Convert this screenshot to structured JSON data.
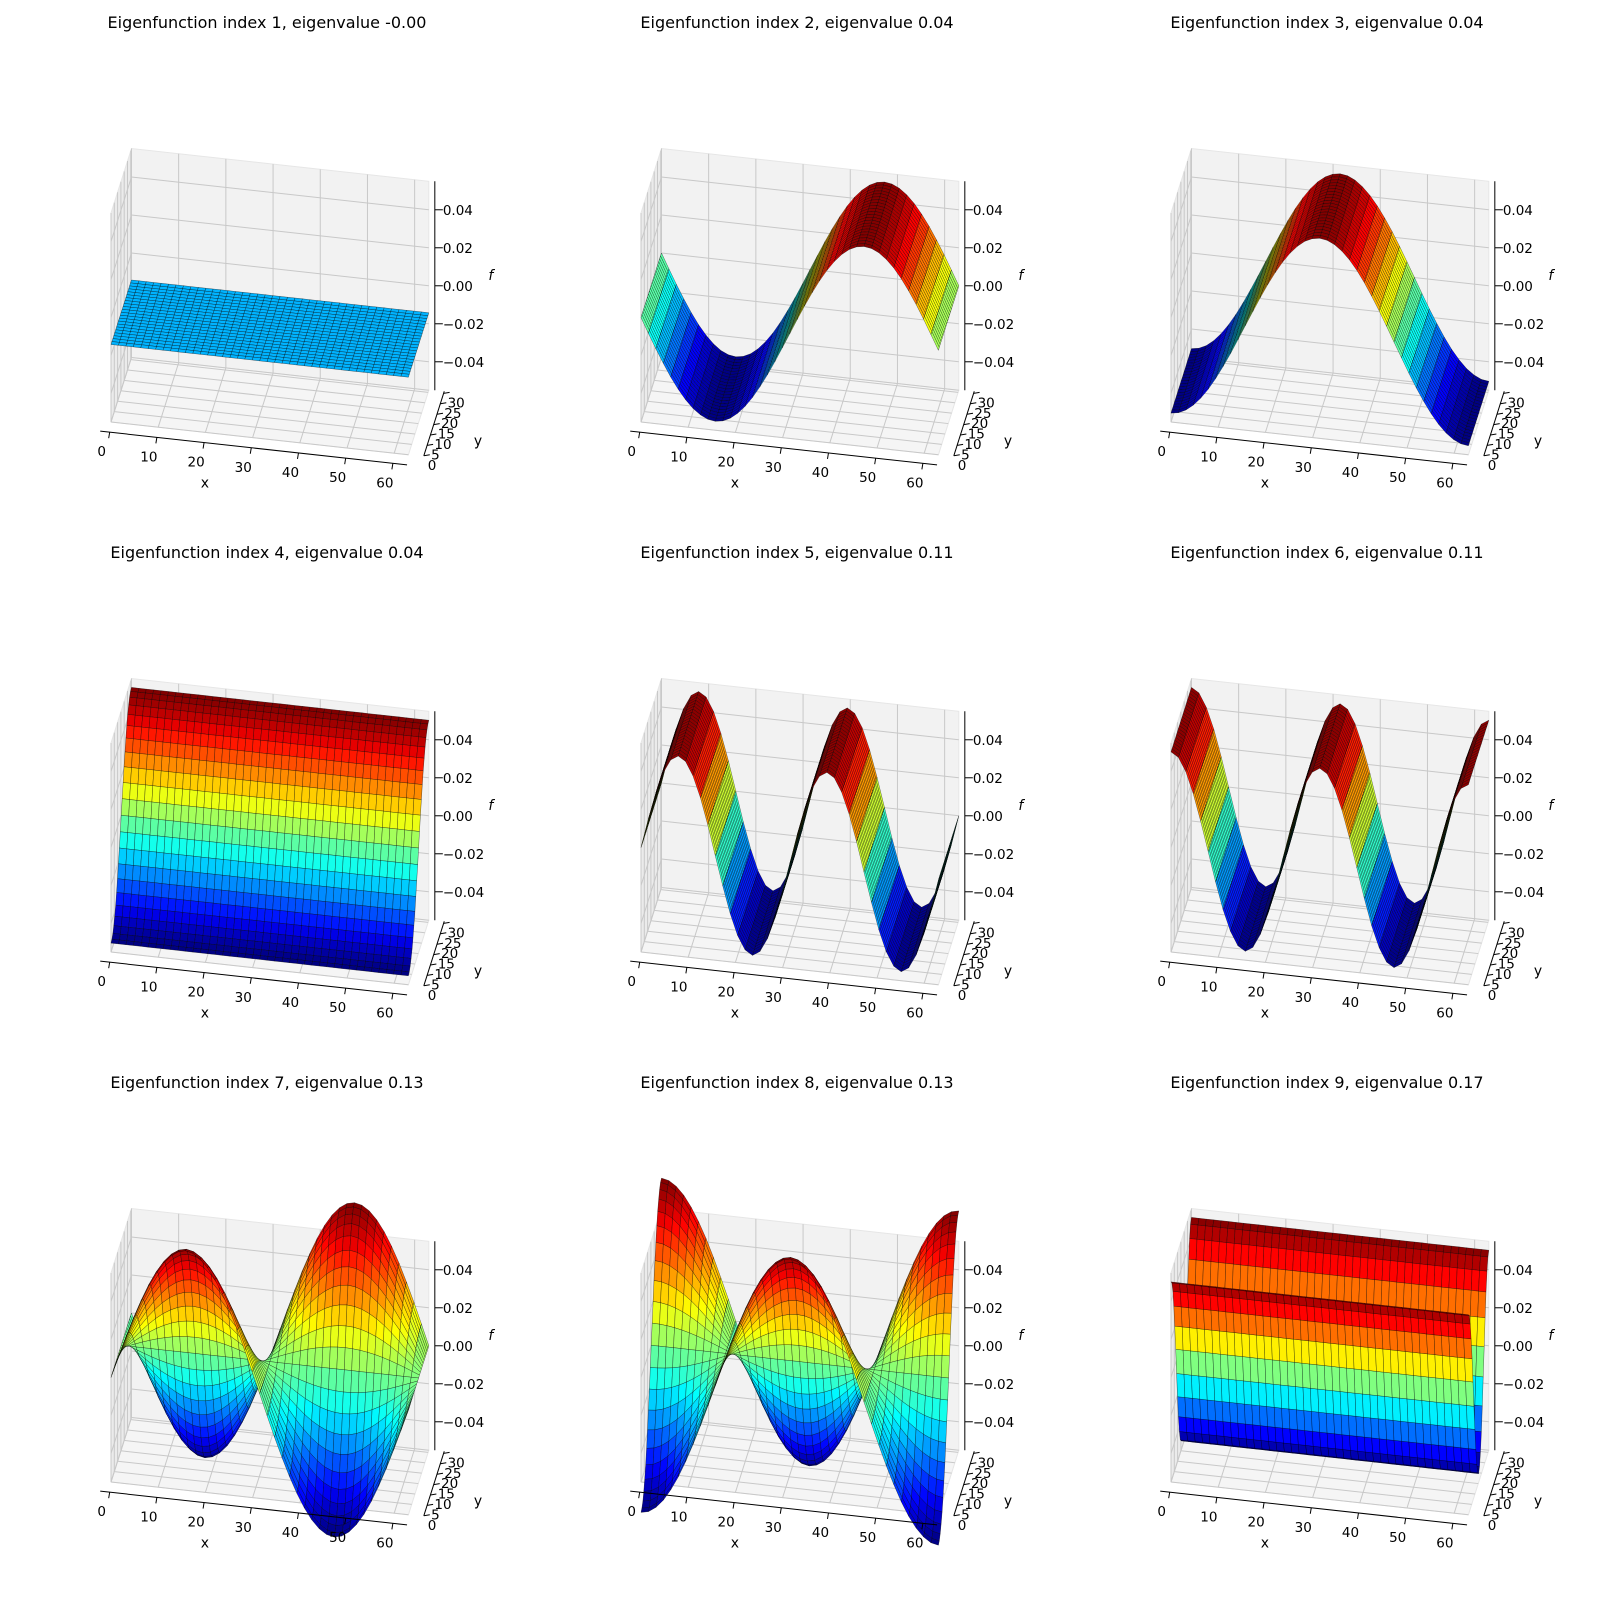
{
  "chart_data": [
    {
      "type": "surface",
      "title": "Eigenfunction index 1, eigenvalue -0.00",
      "mode": "flat",
      "xlabel": "x",
      "ylabel": "y",
      "zlabel": "f",
      "x_ticks": [
        0,
        10,
        20,
        30,
        40,
        50,
        60
      ],
      "y_ticks": [
        0,
        5,
        10,
        15,
        20,
        25,
        30
      ],
      "z_ticks": [
        -0.04,
        -0.02,
        0.0,
        0.02,
        0.04
      ],
      "xlim": [
        0,
        63
      ],
      "ylim": [
        0,
        31
      ],
      "zlim": [
        -0.055,
        0.055
      ],
      "amplitude": -0.0142,
      "colormap": "jet",
      "grid": true
    },
    {
      "type": "surface",
      "title": "Eigenfunction index 2, eigenvalue 0.04",
      "mode": "x",
      "k": 1,
      "phase": "sin",
      "xlabel": "x",
      "ylabel": "y",
      "zlabel": "f",
      "x_ticks": [
        0,
        10,
        20,
        30,
        40,
        50,
        60
      ],
      "y_ticks": [
        0,
        5,
        10,
        15,
        20,
        25,
        30
      ],
      "z_ticks": [
        -0.04,
        -0.02,
        0.0,
        0.02,
        0.04
      ],
      "xlim": [
        0,
        63
      ],
      "ylim": [
        0,
        31
      ],
      "zlim": [
        -0.055,
        0.055
      ],
      "amplitude": -0.0503,
      "colormap": "jet",
      "grid": true
    },
    {
      "type": "surface",
      "title": "Eigenfunction index 3, eigenvalue 0.04",
      "mode": "x",
      "k": 1,
      "phase": "cos",
      "xlabel": "x",
      "ylabel": "y",
      "zlabel": "f",
      "x_ticks": [
        0,
        10,
        20,
        30,
        40,
        50,
        60
      ],
      "y_ticks": [
        0,
        5,
        10,
        15,
        20,
        25,
        30
      ],
      "z_ticks": [
        -0.04,
        -0.02,
        0.0,
        0.02,
        0.04
      ],
      "xlim": [
        0,
        63
      ],
      "ylim": [
        0,
        31
      ],
      "zlim": [
        -0.055,
        0.055
      ],
      "amplitude": -0.0503,
      "colormap": "jet",
      "grid": true
    },
    {
      "type": "surface",
      "title": "Eigenfunction index 4, eigenvalue 0.04",
      "mode": "y",
      "k": 1,
      "xlabel": "x",
      "ylabel": "y",
      "zlabel": "f",
      "x_ticks": [
        0,
        10,
        20,
        30,
        40,
        50,
        60
      ],
      "y_ticks": [
        0,
        5,
        10,
        15,
        20,
        25,
        30
      ],
      "z_ticks": [
        -0.04,
        -0.02,
        0.0,
        0.02,
        0.04
      ],
      "xlim": [
        0,
        63
      ],
      "ylim": [
        0,
        31
      ],
      "zlim": [
        -0.055,
        0.055
      ],
      "amplitude": -0.0503,
      "colormap": "jet",
      "grid": true
    },
    {
      "type": "surface",
      "title": "Eigenfunction index 5, eigenvalue 0.11",
      "mode": "x",
      "k": 2,
      "phase": "sin",
      "xlabel": "x",
      "ylabel": "y",
      "zlabel": "f",
      "x_ticks": [
        0,
        10,
        20,
        30,
        40,
        50,
        60
      ],
      "y_ticks": [
        0,
        5,
        10,
        15,
        20,
        25,
        30
      ],
      "z_ticks": [
        -0.04,
        -0.02,
        0.0,
        0.02,
        0.04
      ],
      "xlim": [
        0,
        63
      ],
      "ylim": [
        0,
        31
      ],
      "zlim": [
        -0.055,
        0.055
      ],
      "amplitude": 0.0503,
      "colormap": "jet",
      "grid": true
    },
    {
      "type": "surface",
      "title": "Eigenfunction index 6, eigenvalue 0.11",
      "mode": "x",
      "k": 2,
      "phase": "cos",
      "xlabel": "x",
      "ylabel": "y",
      "zlabel": "f",
      "x_ticks": [
        0,
        10,
        20,
        30,
        40,
        50,
        60
      ],
      "y_ticks": [
        0,
        5,
        10,
        15,
        20,
        25,
        30
      ],
      "z_ticks": [
        -0.04,
        -0.02,
        0.0,
        0.02,
        0.04
      ],
      "xlim": [
        0,
        63
      ],
      "ylim": [
        0,
        31
      ],
      "zlim": [
        -0.055,
        0.055
      ],
      "amplitude": 0.0503,
      "colormap": "jet",
      "grid": true
    },
    {
      "type": "surface",
      "title": "Eigenfunction index 7, eigenvalue 0.13",
      "mode": "xy",
      "k": 1,
      "phase": "sin",
      "xlabel": "x",
      "ylabel": "y",
      "zlabel": "f",
      "x_ticks": [
        0,
        10,
        20,
        30,
        40,
        50,
        60
      ],
      "y_ticks": [
        0,
        5,
        10,
        15,
        20,
        25,
        30
      ],
      "z_ticks": [
        -0.04,
        -0.02,
        0.0,
        0.02,
        0.04
      ],
      "xlim": [
        0,
        63
      ],
      "ylim": [
        0,
        31
      ],
      "zlim": [
        -0.055,
        0.055
      ],
      "amplitude": 0.071,
      "colormap": "jet",
      "grid": true
    },
    {
      "type": "surface",
      "title": "Eigenfunction index 8, eigenvalue 0.13",
      "mode": "xy",
      "k": 1,
      "phase": "cos",
      "xlabel": "x",
      "ylabel": "y",
      "zlabel": "f",
      "x_ticks": [
        0,
        10,
        20,
        30,
        40,
        50,
        60
      ],
      "y_ticks": [
        0,
        5,
        10,
        15,
        20,
        25,
        30
      ],
      "z_ticks": [
        -0.04,
        -0.02,
        0.0,
        0.02,
        0.04
      ],
      "xlim": [
        0,
        63
      ],
      "ylim": [
        0,
        31
      ],
      "zlim": [
        -0.055,
        0.055
      ],
      "amplitude": -0.071,
      "colormap": "jet",
      "grid": true
    },
    {
      "type": "surface",
      "title": "Eigenfunction index 9, eigenvalue 0.17",
      "mode": "y",
      "k": 2,
      "xlabel": "x",
      "ylabel": "y",
      "zlabel": "f",
      "x_ticks": [
        0,
        10,
        20,
        30,
        40,
        50,
        60
      ],
      "y_ticks": [
        0,
        5,
        10,
        15,
        20,
        25,
        30
      ],
      "z_ticks": [
        -0.04,
        -0.02,
        0.0,
        0.02,
        0.04
      ],
      "xlim": [
        0,
        63
      ],
      "ylim": [
        0,
        31
      ],
      "zlim": [
        -0.055,
        0.055
      ],
      "amplitude": 0.0503,
      "colormap": "jet",
      "grid": true
    }
  ]
}
